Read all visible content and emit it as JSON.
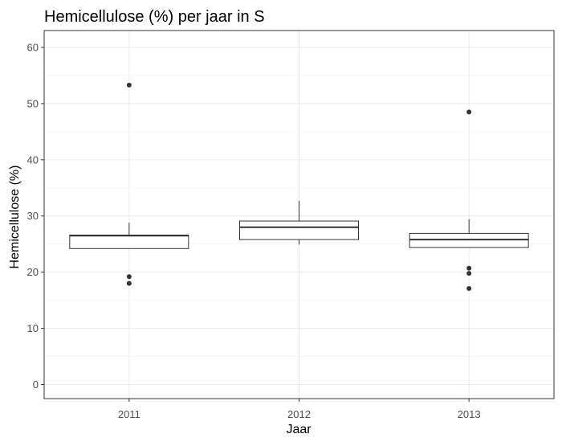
{
  "chart_data": {
    "type": "box",
    "title": "Hemicellulose (%) per jaar in S",
    "xlabel": "Jaar",
    "ylabel": "Hemicellulose (%)",
    "categories": [
      "2011",
      "2012",
      "2013"
    ],
    "ylim": [
      -2.5,
      63
    ],
    "yticks": [
      0,
      10,
      20,
      30,
      40,
      50,
      60
    ],
    "grid": true,
    "legend": "none",
    "boxes": [
      {
        "category": "2011",
        "whisker_low": 24.2,
        "q1": 24.2,
        "median": 26.5,
        "q3": 26.6,
        "whisker_high": 28.8,
        "outliers": [
          53.3,
          19.2,
          18.0
        ]
      },
      {
        "category": "2012",
        "whisker_low": 24.9,
        "q1": 25.8,
        "median": 28.0,
        "q3": 29.1,
        "whisker_high": 32.7,
        "outliers": []
      },
      {
        "category": "2013",
        "whisker_low": 24.4,
        "q1": 24.4,
        "median": 25.8,
        "q3": 26.9,
        "whisker_high": 29.4,
        "outliers": [
          48.5,
          20.7,
          19.8,
          17.1
        ]
      }
    ]
  }
}
